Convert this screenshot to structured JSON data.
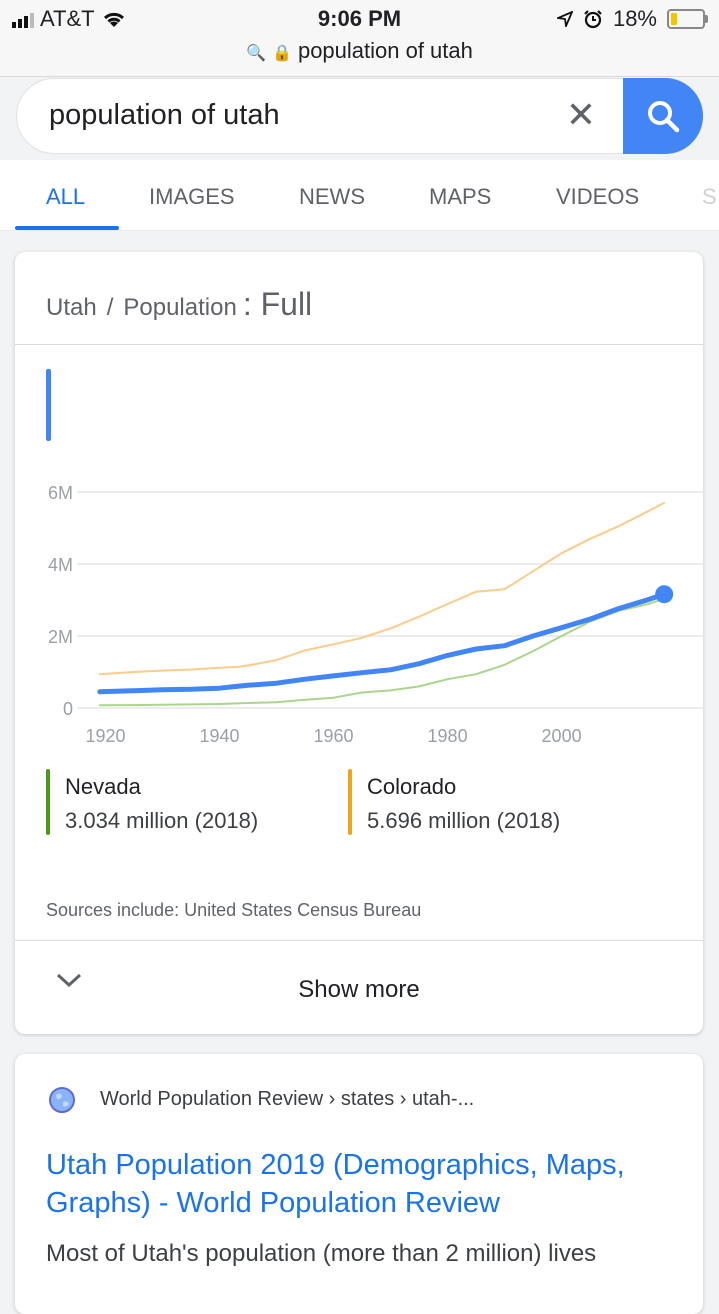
{
  "status": {
    "carrier": "AT&T",
    "time": "9:06 PM",
    "battery": "18%",
    "url": "population of utah"
  },
  "search": {
    "query": "population of utah"
  },
  "tabs": [
    {
      "label": "ALL"
    },
    {
      "label": "IMAGES"
    },
    {
      "label": "NEWS"
    },
    {
      "label": "MAPS"
    },
    {
      "label": "VIDEOS"
    },
    {
      "label": "S"
    }
  ],
  "card": {
    "crumb_place": "Utah",
    "crumb_sep": "/",
    "crumb_topic": "Population",
    "crumb_mode": ": Full",
    "legend": [
      {
        "name": "Nevada",
        "value": "3.034 million (2018)",
        "color": "#4a9a1a"
      },
      {
        "name": "Colorado",
        "value": "5.696 million (2018)",
        "color": "#f4a11e"
      }
    ],
    "sources": "Sources include: United States Census Bureau",
    "show_more": "Show more"
  },
  "chart_data": {
    "type": "line",
    "ylim": [
      0,
      6000000
    ],
    "xlim": [
      1915,
      2022
    ],
    "y_ticks": [
      "0",
      "2M",
      "4M",
      "6M"
    ],
    "x_ticks": [
      "1920",
      "1940",
      "1960",
      "1980",
      "2000"
    ],
    "series": [
      {
        "name": "Colorado",
        "color": "#f9cc8a",
        "x": [
          1919,
          1925,
          1930,
          1935,
          1940,
          1943,
          1945,
          1950,
          1955,
          1960,
          1965,
          1970,
          1975,
          1980,
          1985,
          1990,
          1995,
          2000,
          2005,
          2010,
          2015,
          2018
        ],
        "y": [
          940000,
          1000000,
          1040000,
          1070000,
          1120000,
          1140000,
          1180000,
          1330000,
          1600000,
          1770000,
          1950000,
          2210000,
          2540000,
          2890000,
          3230000,
          3300000,
          3800000,
          4300000,
          4700000,
          5050000,
          5450000,
          5696000
        ]
      },
      {
        "name": "Nevada",
        "color": "#a8d68c",
        "x": [
          1919,
          1925,
          1930,
          1935,
          1940,
          1945,
          1950,
          1955,
          1960,
          1965,
          1970,
          1975,
          1980,
          1985,
          1990,
          1995,
          2000,
          2005,
          2010,
          2015,
          2018
        ],
        "y": [
          77000,
          80000,
          91000,
          100000,
          110000,
          140000,
          160000,
          230000,
          285000,
          430000,
          490000,
          600000,
          800000,
          940000,
          1200000,
          1580000,
          2000000,
          2400000,
          2700000,
          2880000,
          3034000
        ]
      },
      {
        "name": "Utah",
        "color": "#4285f4",
        "x": [
          1919,
          1925,
          1930,
          1935,
          1940,
          1943,
          1945,
          1950,
          1955,
          1960,
          1965,
          1970,
          1975,
          1980,
          1985,
          1990,
          1995,
          2000,
          2005,
          2010,
          2015,
          2018
        ],
        "y": [
          449000,
          480000,
          508000,
          520000,
          550000,
          600000,
          630000,
          689000,
          800000,
          891000,
          980000,
          1060000,
          1230000,
          1460000,
          1640000,
          1730000,
          2000000,
          2230000,
          2470000,
          2760000,
          3000000,
          3161000
        ]
      }
    ]
  },
  "result": {
    "site": "World Population Review › states › utah-...",
    "title": "Utah Population 2019 (Demographics, Maps, Graphs) - World Population Review",
    "snippet": "Most of Utah's population (more than 2 million) lives"
  }
}
